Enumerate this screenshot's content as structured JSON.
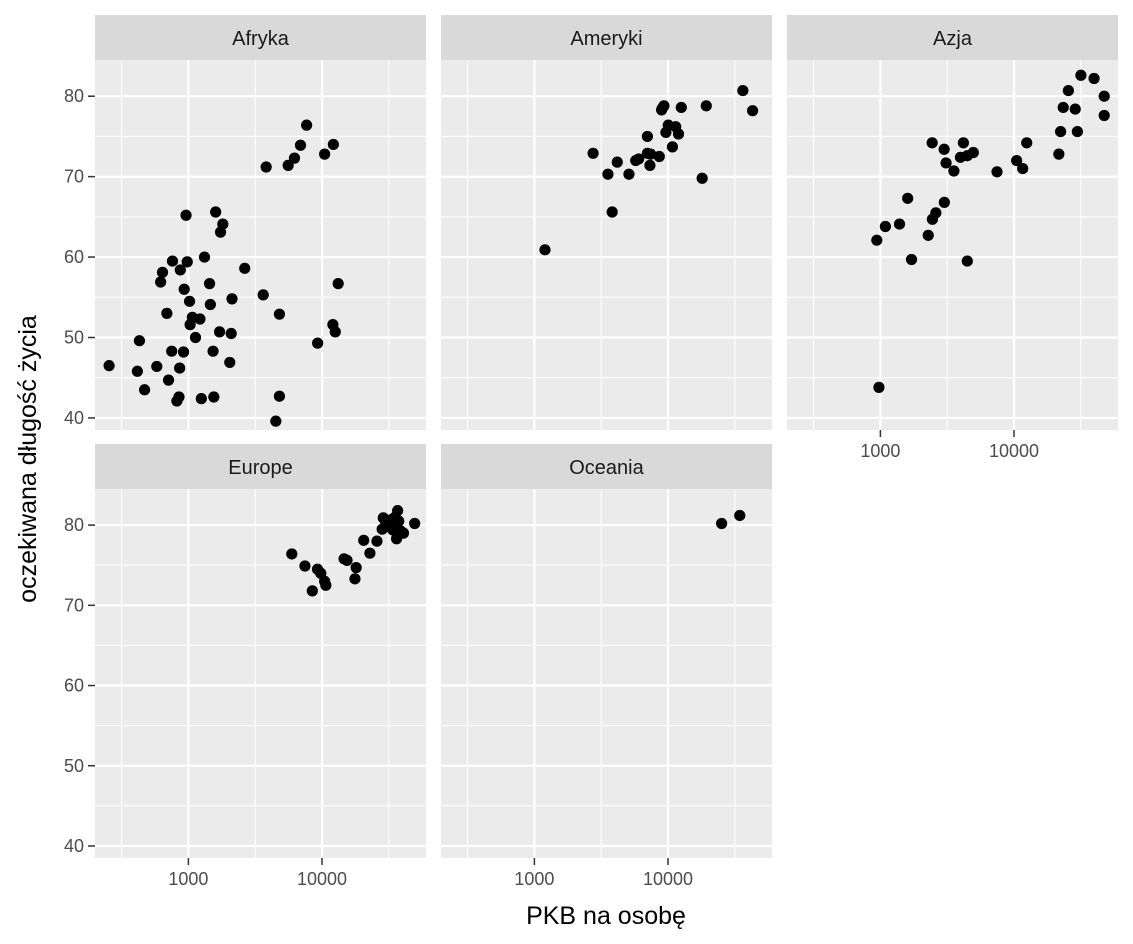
{
  "chart_data": {
    "type": "scatter",
    "xlabel": "PKB na osobę",
    "ylabel": "oczekiwana długość życia",
    "x_scale": "log10",
    "x_ticks": [
      1000,
      10000
    ],
    "x_tick_labels": [
      "1000",
      "10000"
    ],
    "xlim": [
      200,
      60000
    ],
    "y_ticks": [
      40,
      50,
      60,
      70,
      80
    ],
    "y_tick_labels": [
      "40",
      "50",
      "60",
      "70",
      "80"
    ],
    "ylim": [
      38.5,
      84.5
    ],
    "grid": true,
    "legend": "none",
    "colors": {
      "panel": "#ebebeb",
      "strip": "#d9d9d9",
      "grid": "#ffffff",
      "point": "#000000"
    },
    "facets": [
      {
        "label": "Afryka",
        "points": [
          [
            255,
            46.5
          ],
          [
            415,
            45.8
          ],
          [
            430,
            49.6
          ],
          [
            470,
            43.5
          ],
          [
            580,
            46.4
          ],
          [
            620,
            56.9
          ],
          [
            640,
            58.1
          ],
          [
            690,
            53.0
          ],
          [
            710,
            44.7
          ],
          [
            750,
            48.3
          ],
          [
            760,
            59.5
          ],
          [
            820,
            42.1
          ],
          [
            850,
            42.6
          ],
          [
            860,
            46.2
          ],
          [
            870,
            58.4
          ],
          [
            920,
            48.2
          ],
          [
            930,
            56.0
          ],
          [
            960,
            65.2
          ],
          [
            980,
            59.4
          ],
          [
            1030,
            51.6
          ],
          [
            1020,
            54.5
          ],
          [
            1070,
            52.5
          ],
          [
            1130,
            50.0
          ],
          [
            1220,
            52.3
          ],
          [
            1250,
            42.4
          ],
          [
            1320,
            60.0
          ],
          [
            1440,
            56.7
          ],
          [
            1460,
            54.1
          ],
          [
            1530,
            48.3
          ],
          [
            1550,
            42.6
          ],
          [
            1600,
            65.6
          ],
          [
            1740,
            63.1
          ],
          [
            1710,
            50.7
          ],
          [
            1810,
            64.1
          ],
          [
            2040,
            46.9
          ],
          [
            2090,
            50.5
          ],
          [
            2120,
            54.8
          ],
          [
            2640,
            58.6
          ],
          [
            3630,
            55.3
          ],
          [
            3820,
            71.2
          ],
          [
            4510,
            39.6
          ],
          [
            4800,
            52.9
          ],
          [
            4800,
            42.7
          ],
          [
            5580,
            71.4
          ],
          [
            6220,
            72.3
          ],
          [
            6900,
            73.9
          ],
          [
            7670,
            76.4
          ],
          [
            9270,
            49.3
          ],
          [
            10460,
            72.8
          ],
          [
            12060,
            51.6
          ],
          [
            12570,
            50.7
          ],
          [
            13210,
            56.7
          ],
          [
            12160,
            74.0
          ]
        ]
      },
      {
        "label": "Ameryki",
        "points": [
          [
            1200,
            60.9
          ],
          [
            2750,
            72.9
          ],
          [
            3550,
            70.3
          ],
          [
            3820,
            65.6
          ],
          [
            4170,
            71.8
          ],
          [
            5100,
            70.3
          ],
          [
            5730,
            72.0
          ],
          [
            6030,
            72.2
          ],
          [
            7010,
            72.9
          ],
          [
            7010,
            75.0
          ],
          [
            7320,
            71.4
          ],
          [
            7410,
            72.8
          ],
          [
            8600,
            72.5
          ],
          [
            8950,
            78.3
          ],
          [
            9070,
            78.5
          ],
          [
            9320,
            78.8
          ],
          [
            9640,
            75.5
          ],
          [
            10040,
            76.4
          ],
          [
            10790,
            73.7
          ],
          [
            11420,
            76.2
          ],
          [
            11980,
            75.3
          ],
          [
            12570,
            78.6
          ],
          [
            18010,
            69.8
          ],
          [
            19330,
            78.8
          ],
          [
            36320,
            80.7
          ],
          [
            42950,
            78.2
          ]
        ]
      },
      {
        "label": "Azja",
        "points": [
          [
            940,
            62.1
          ],
          [
            975,
            43.8
          ],
          [
            1090,
            63.8
          ],
          [
            1390,
            64.1
          ],
          [
            1600,
            67.3
          ],
          [
            1710,
            59.7
          ],
          [
            2280,
            62.7
          ],
          [
            2440,
            74.2
          ],
          [
            2450,
            64.7
          ],
          [
            2600,
            65.5
          ],
          [
            3000,
            73.4
          ],
          [
            3100,
            71.7
          ],
          [
            3010,
            66.8
          ],
          [
            3550,
            70.7
          ],
          [
            3970,
            72.4
          ],
          [
            4180,
            74.2
          ],
          [
            4470,
            72.6
          ],
          [
            4470,
            59.5
          ],
          [
            4960,
            73.0
          ],
          [
            7460,
            70.6
          ],
          [
            10460,
            72.0
          ],
          [
            11610,
            71.0
          ],
          [
            12450,
            74.2
          ],
          [
            21650,
            72.8
          ],
          [
            22320,
            75.6
          ],
          [
            23350,
            78.6
          ],
          [
            25520,
            80.7
          ],
          [
            28720,
            78.4
          ],
          [
            29800,
            75.6
          ],
          [
            31660,
            82.6
          ],
          [
            39720,
            82.2
          ],
          [
            47310,
            80.0
          ],
          [
            47310,
            77.6
          ]
        ]
      },
      {
        "label": "Europe",
        "points": [
          [
            5940,
            76.4
          ],
          [
            7450,
            74.9
          ],
          [
            8460,
            71.8
          ],
          [
            9250,
            74.5
          ],
          [
            9790,
            74.0
          ],
          [
            10460,
            73.0
          ],
          [
            10680,
            72.5
          ],
          [
            14620,
            75.8
          ],
          [
            15390,
            75.6
          ],
          [
            17640,
            73.3
          ],
          [
            18010,
            74.7
          ],
          [
            20510,
            78.1
          ],
          [
            22830,
            76.5
          ],
          [
            25770,
            78.0
          ],
          [
            28190,
            79.5
          ],
          [
            28730,
            80.9
          ],
          [
            29800,
            80.5
          ],
          [
            30470,
            79.8
          ],
          [
            32170,
            80.2
          ],
          [
            33200,
            80.7
          ],
          [
            33860,
            79.4
          ],
          [
            34670,
            79.8
          ],
          [
            35280,
            81.0
          ],
          [
            36130,
            78.3
          ],
          [
            36800,
            81.8
          ],
          [
            37500,
            80.5
          ],
          [
            38600,
            79.3
          ],
          [
            40680,
            79.0
          ],
          [
            49360,
            80.2
          ]
        ]
      },
      {
        "label": "Oceania",
        "points": [
          [
            25180,
            80.2
          ],
          [
            34430,
            81.2
          ]
        ]
      }
    ]
  }
}
